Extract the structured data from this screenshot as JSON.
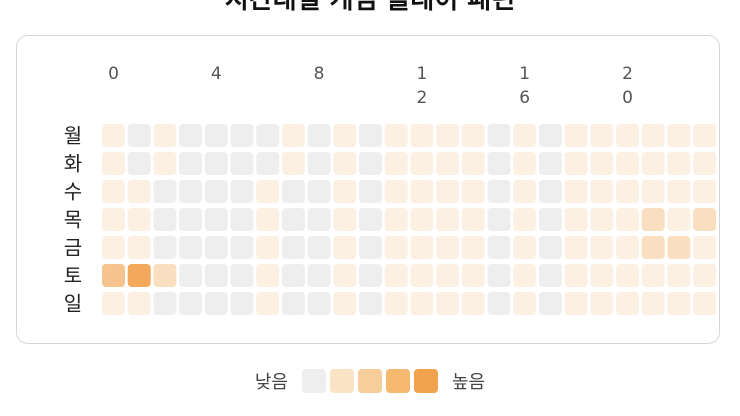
{
  "title": "시간대별 게임 플레이 패턴",
  "chart_data": {
    "type": "heatmap",
    "title": "시간대별 게임 플레이 패턴",
    "x_tick_labels": [
      "0",
      "4",
      "8",
      "12",
      "16",
      "20"
    ],
    "x_tick_hours": [
      0,
      4,
      8,
      12,
      16,
      20
    ],
    "x_hours": [
      0,
      1,
      2,
      3,
      4,
      5,
      6,
      7,
      8,
      9,
      10,
      11,
      12,
      13,
      14,
      15,
      16,
      17,
      18,
      19,
      20,
      21,
      22,
      23
    ],
    "y_labels": [
      "월",
      "화",
      "수",
      "목",
      "금",
      "토",
      "일"
    ],
    "values": [
      [
        1,
        0,
        1,
        0,
        0,
        0,
        0,
        1,
        0,
        1,
        0,
        1,
        1,
        1,
        1,
        0,
        1,
        0,
        1,
        1,
        1,
        1,
        1,
        1
      ],
      [
        1,
        0,
        1,
        0,
        0,
        0,
        0,
        1,
        0,
        1,
        0,
        1,
        1,
        1,
        1,
        0,
        1,
        0,
        1,
        1,
        1,
        1,
        1,
        1
      ],
      [
        1,
        1,
        0,
        0,
        0,
        0,
        1,
        0,
        0,
        1,
        0,
        1,
        1,
        1,
        1,
        0,
        1,
        0,
        1,
        1,
        1,
        1,
        1,
        1
      ],
      [
        1,
        1,
        0,
        0,
        0,
        0,
        1,
        0,
        0,
        1,
        0,
        1,
        1,
        1,
        1,
        0,
        1,
        0,
        1,
        1,
        1,
        2,
        1,
        2
      ],
      [
        1,
        1,
        0,
        0,
        0,
        0,
        1,
        0,
        0,
        1,
        0,
        1,
        1,
        1,
        1,
        0,
        1,
        0,
        1,
        1,
        1,
        2,
        2,
        1
      ],
      [
        3,
        4,
        2,
        0,
        0,
        0,
        1,
        0,
        0,
        1,
        0,
        1,
        1,
        1,
        1,
        0,
        1,
        0,
        1,
        1,
        1,
        1,
        1,
        1
      ],
      [
        1,
        1,
        0,
        0,
        0,
        0,
        1,
        0,
        0,
        1,
        0,
        1,
        1,
        1,
        1,
        0,
        1,
        0,
        1,
        1,
        1,
        1,
        1,
        1
      ]
    ],
    "color_scale": [
      "#eeeeee",
      "#fcf0e3",
      "#f9dfbf",
      "#f5c48f",
      "#f2a95b"
    ],
    "legend": {
      "low_label": "낮음",
      "high_label": "높음",
      "colors": [
        "#eeeeee",
        "#fbe3c5",
        "#f7cd99",
        "#f4b96f",
        "#f0a24c"
      ]
    }
  }
}
